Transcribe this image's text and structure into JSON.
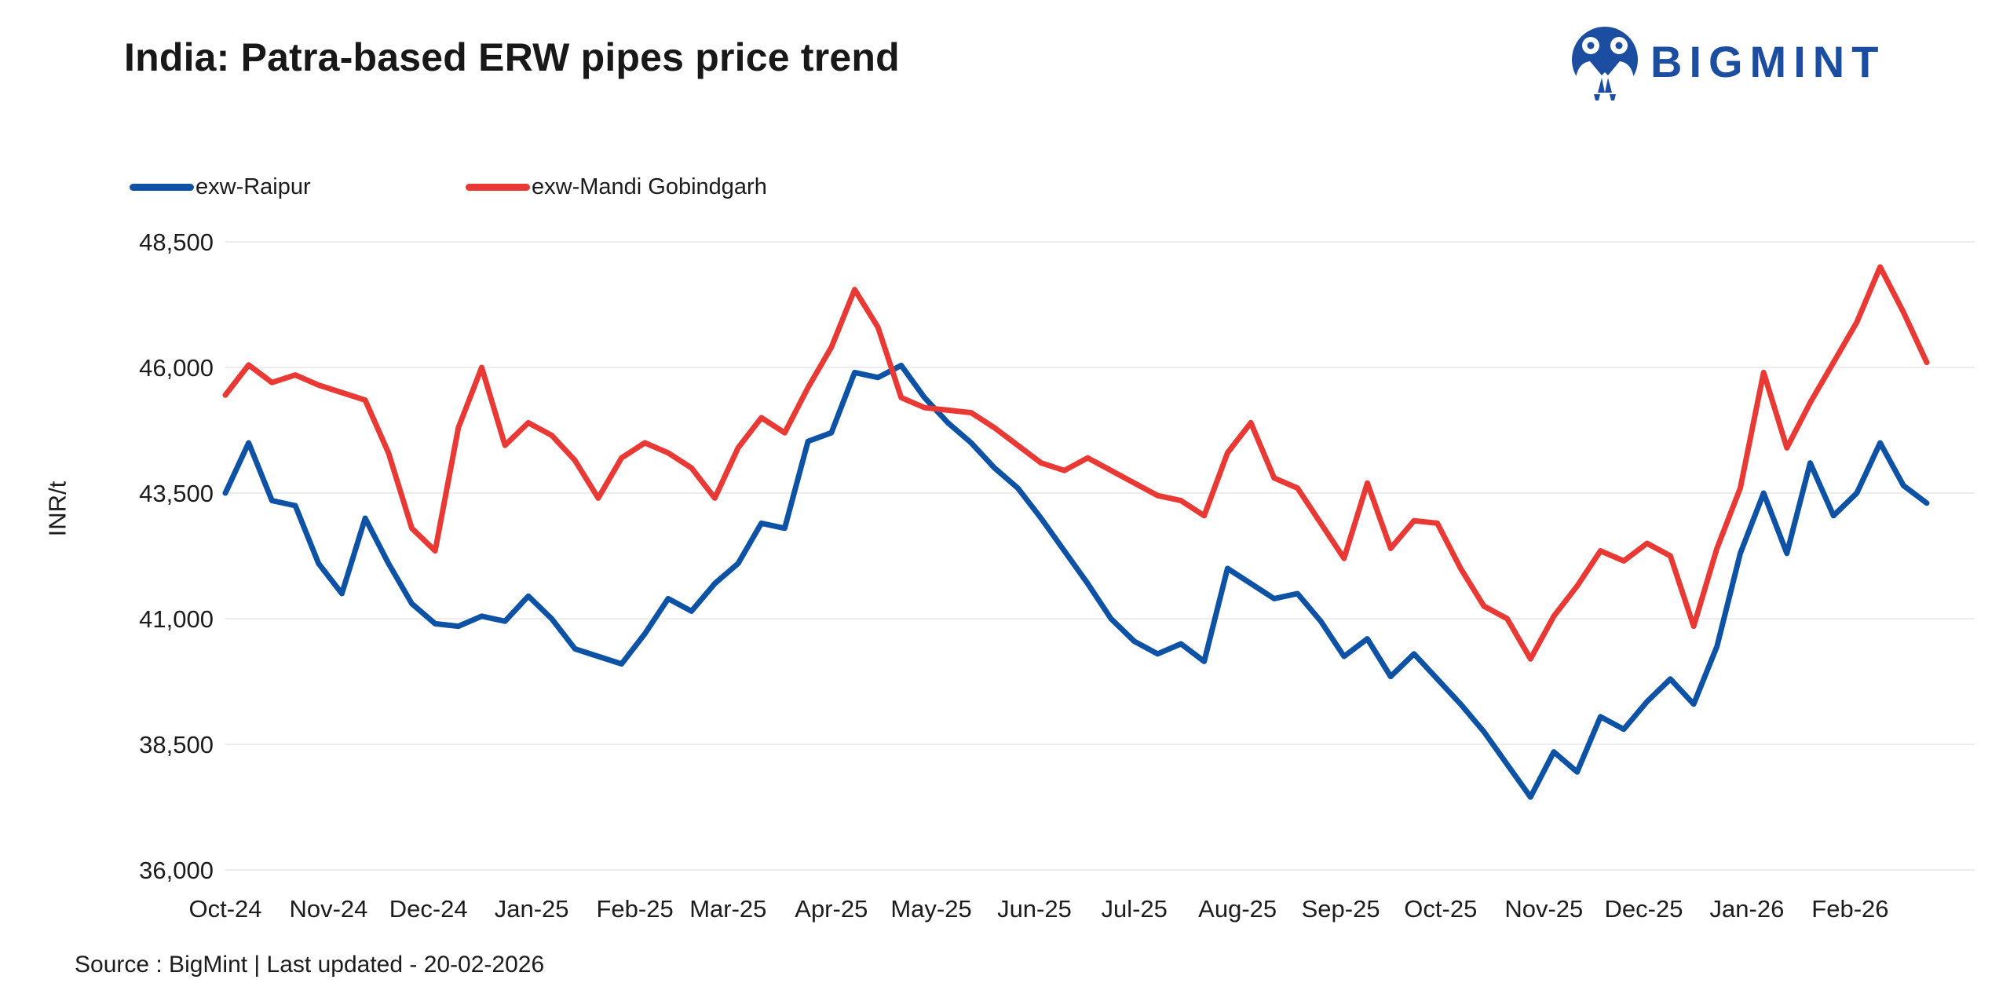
{
  "header": {
    "title": "India: Patra-based ERW pipes price trend"
  },
  "brand": {
    "name": "BIGMINT",
    "color": "#1b4da0"
  },
  "legend": [
    {
      "label": "exw-Raipur",
      "color": "#0d52a5"
    },
    {
      "label": "exw-Mandi Gobindgarh",
      "color": "#e83935"
    }
  ],
  "footer": {
    "source_line": "Source : BigMint | Last updated - 20-02-2026"
  },
  "chart_data": {
    "type": "line",
    "title": "India: Patra-based ERW pipes price trend",
    "xlabel": "",
    "ylabel": "INR/t",
    "ylim": [
      36000,
      48500
    ],
    "y_ticks": [
      48500,
      46000,
      43500,
      41000,
      38500,
      36000
    ],
    "y_tick_labels": [
      "48,500",
      "46,000",
      "43,500",
      "41,000",
      "38,500",
      "36,000"
    ],
    "grid": "horizontal-only",
    "legend_position": "top-left",
    "grid_color": "#ededed",
    "line_width": 7,
    "x_tick_labels": [
      "Oct-24",
      "Nov-24",
      "Dec-24",
      "Jan-25",
      "Feb-25",
      "Mar-25",
      "Apr-25",
      "May-25",
      "Jun-25",
      "Jul-25",
      "Aug-25",
      "Sep-25",
      "Oct-25",
      "Nov-25",
      "Dec-25",
      "Jan-26",
      "Feb-26"
    ],
    "x_tick_day_offsets": [
      0,
      31,
      61,
      92,
      123,
      151,
      182,
      212,
      243,
      273,
      304,
      335,
      365,
      396,
      426,
      457,
      488
    ],
    "total_days": 511,
    "sample_interval_days": 7,
    "date_range": "01-10-2024 to 20-02-2026",
    "series": [
      {
        "name": "exw-Raipur",
        "color": "#0d52a5",
        "values": [
          43500,
          44500,
          43350,
          43250,
          42100,
          41500,
          43000,
          42100,
          41300,
          40900,
          40850,
          41050,
          40950,
          41450,
          41000,
          40400,
          40250,
          40100,
          40700,
          41400,
          41150,
          41700,
          42100,
          42900,
          42800,
          44530,
          44700,
          45900,
          45800,
          46040,
          45400,
          44900,
          44500,
          44000,
          43600,
          43000,
          42350,
          41700,
          41000,
          40550,
          40300,
          40500,
          40150,
          42000,
          41700,
          41400,
          41500,
          40950,
          40250,
          40600,
          39850,
          40300,
          39800,
          39300,
          38750,
          38100,
          37450,
          38350,
          37950,
          39050,
          38800,
          39350,
          39800,
          39300,
          40450,
          42300,
          43500,
          42300,
          44100,
          43050,
          43500,
          44500,
          43650,
          43300
        ]
      },
      {
        "name": "exw-Mandi Gobindgarh",
        "color": "#e83935",
        "values": [
          45450,
          46050,
          45700,
          45850,
          45650,
          45500,
          45350,
          44300,
          42800,
          42350,
          44800,
          46000,
          44450,
          44900,
          44650,
          44150,
          43400,
          44200,
          44500,
          44300,
          44000,
          43400,
          44400,
          45000,
          44700,
          45600,
          46400,
          47550,
          46800,
          45400,
          45200,
          45150,
          45100,
          44800,
          44450,
          44100,
          43950,
          44200,
          43950,
          43700,
          43450,
          43350,
          43050,
          44300,
          44900,
          43800,
          43600,
          42900,
          42200,
          43700,
          42400,
          42950,
          42900,
          42000,
          41250,
          41000,
          40200,
          41050,
          41650,
          42350,
          42150,
          42500,
          42250,
          40850,
          42400,
          43600,
          45900,
          44400,
          45300,
          46100,
          46900,
          48000,
          47100,
          46100
        ]
      }
    ]
  }
}
